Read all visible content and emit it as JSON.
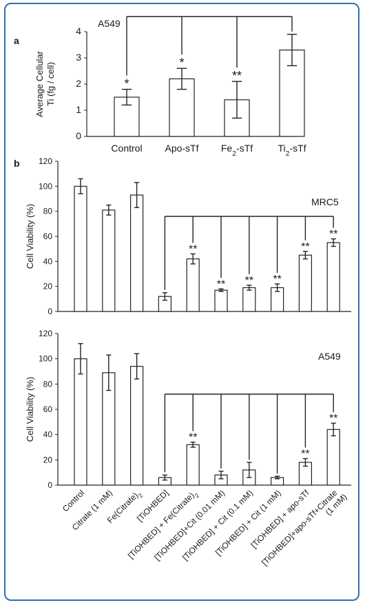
{
  "chart_data": [
    {
      "type": "bar",
      "panel_label": "a",
      "annotation": "A549",
      "ylabel": "Average Cellular\nTi (fg / cell)",
      "ylim": [
        0,
        4
      ],
      "yticks": [
        0,
        1,
        2,
        3,
        4
      ],
      "categories": [
        "Control",
        "Apo-sTf",
        "Fe₂-sTf",
        "Ti₂-sTf"
      ],
      "values": [
        1.5,
        2.2,
        1.4,
        3.3
      ],
      "errors": [
        0.3,
        0.4,
        0.7,
        0.6
      ],
      "significance": [
        "*",
        "*",
        "**",
        ""
      ],
      "bracket_reference_index": 3,
      "bracket_targets": [
        0,
        1,
        2
      ]
    },
    {
      "type": "bar",
      "panel_label": "b",
      "annotation": "MRC5",
      "ylabel": "Cell Viability (%)",
      "ylim": [
        0,
        120
      ],
      "yticks": [
        0,
        20,
        40,
        60,
        80,
        100,
        120
      ],
      "values": [
        100,
        81,
        93,
        12,
        42,
        17,
        19,
        19,
        45,
        55
      ],
      "errors": [
        6,
        4,
        10,
        3,
        4,
        1,
        2,
        3,
        3,
        3
      ],
      "significance": [
        "",
        "",
        "",
        "",
        "**",
        "**",
        "**",
        "**",
        "**",
        "**"
      ],
      "bracket_reference_index": 3,
      "bracket_targets": [
        4,
        5,
        6,
        7,
        8,
        9
      ]
    },
    {
      "type": "bar",
      "annotation": "A549",
      "ylabel": "Cell Viability (%)",
      "ylim": [
        0,
        120
      ],
      "yticks": [
        0,
        20,
        40,
        60,
        80,
        100,
        120
      ],
      "categories": [
        "Control",
        "Citrate (1 mM)",
        "Fe(Citrate)₂",
        "[TiOHBED]",
        "[TiOHBED] + Fe(Citrate)₂",
        "[TiOHBED]+Cit (0.01 mM)",
        "[TiOHBED] + Cit (0.1 mM)",
        "[TiOHBED] + Cit (1 mM)",
        "[TiOHBED] + apo-sTf",
        "[TiOHBED]+apo-sTf+Citrate\n(1 mM)"
      ],
      "values": [
        100,
        89,
        94,
        6,
        32,
        8,
        12,
        6,
        18,
        44
      ],
      "errors": [
        12,
        14,
        10,
        2,
        2,
        3,
        6,
        1,
        3,
        5
      ],
      "significance": [
        "",
        "",
        "",
        "",
        "**",
        "",
        "",
        "",
        "**",
        "**"
      ],
      "bracket_reference_index": 3,
      "bracket_targets": [
        4,
        5,
        6,
        7,
        8,
        9
      ]
    }
  ]
}
